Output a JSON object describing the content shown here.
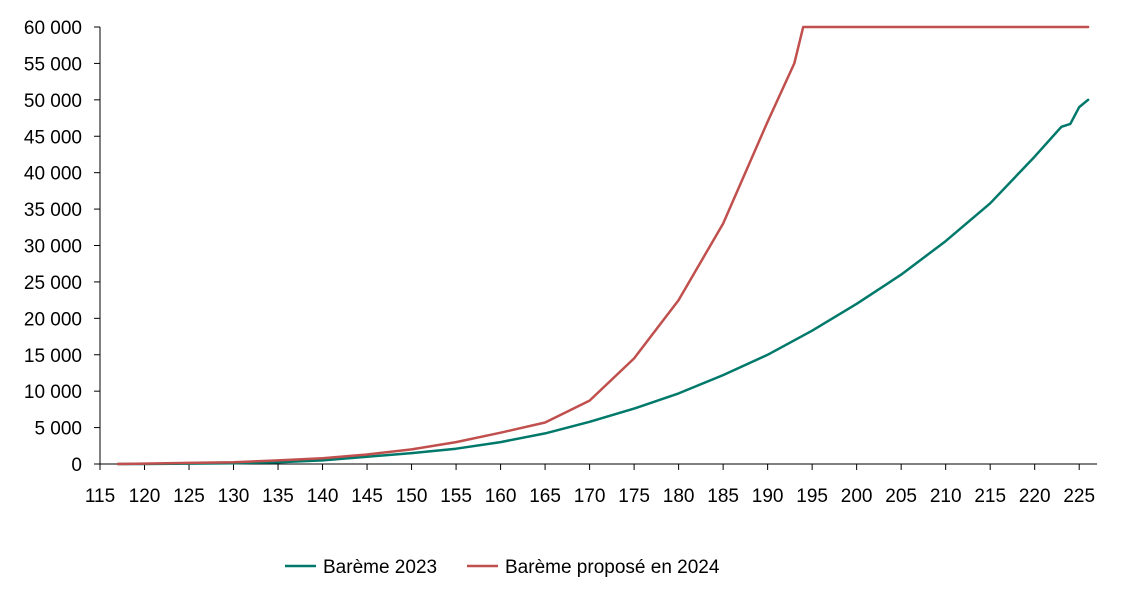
{
  "chart_data": {
    "type": "line",
    "title": "",
    "xlabel": "",
    "ylabel": "",
    "xlim": [
      115,
      227
    ],
    "ylim": [
      0,
      60000
    ],
    "x_ticks": [
      115,
      120,
      125,
      130,
      135,
      140,
      145,
      150,
      155,
      160,
      165,
      170,
      175,
      180,
      185,
      190,
      195,
      200,
      205,
      210,
      215,
      220,
      225
    ],
    "x_tick_labels": [
      "115",
      "120",
      "125",
      "130",
      "135",
      "140",
      "145",
      "150",
      "155",
      "160",
      "165",
      "170",
      "175",
      "180",
      "185",
      "190",
      "195",
      "200",
      "205",
      "210",
      "215",
      "220",
      "225"
    ],
    "y_ticks": [
      0,
      5000,
      10000,
      15000,
      20000,
      25000,
      30000,
      35000,
      40000,
      45000,
      50000,
      55000,
      60000
    ],
    "y_tick_labels": [
      "0",
      "5 000",
      "10 000",
      "15 000",
      "20 000",
      "25 000",
      "30 000",
      "35 000",
      "40 000",
      "45 000",
      "50 000",
      "55 000",
      "60 000"
    ],
    "grid": false,
    "legend_position": "bottom",
    "series": [
      {
        "name": "Barème 2023",
        "color": "#00796b",
        "x": [
          117,
          120,
          125,
          130,
          135,
          140,
          145,
          150,
          155,
          160,
          165,
          170,
          175,
          180,
          185,
          190,
          195,
          200,
          205,
          210,
          215,
          220,
          223,
          224,
          225,
          226
        ],
        "values": [
          0,
          0,
          50,
          100,
          250,
          500,
          1000,
          1500,
          2100,
          3000,
          4200,
          5800,
          7600,
          9700,
          12200,
          15000,
          18300,
          22000,
          26000,
          30600,
          35800,
          42200,
          46300,
          46700,
          49000,
          50000
        ]
      },
      {
        "name": "Barème proposé en 2024",
        "color": "#c0504d",
        "x": [
          117,
          120,
          125,
          130,
          135,
          140,
          145,
          150,
          155,
          160,
          165,
          170,
          175,
          180,
          185,
          190,
          193,
          194,
          195,
          200,
          205,
          210,
          215,
          220,
          225,
          226
        ],
        "values": [
          0,
          50,
          150,
          250,
          500,
          800,
          1300,
          2000,
          3000,
          4300,
          5700,
          8700,
          14500,
          22500,
          33000,
          47000,
          55000,
          60000,
          60000,
          60000,
          60000,
          60000,
          60000,
          60000,
          60000,
          60000
        ]
      }
    ]
  }
}
